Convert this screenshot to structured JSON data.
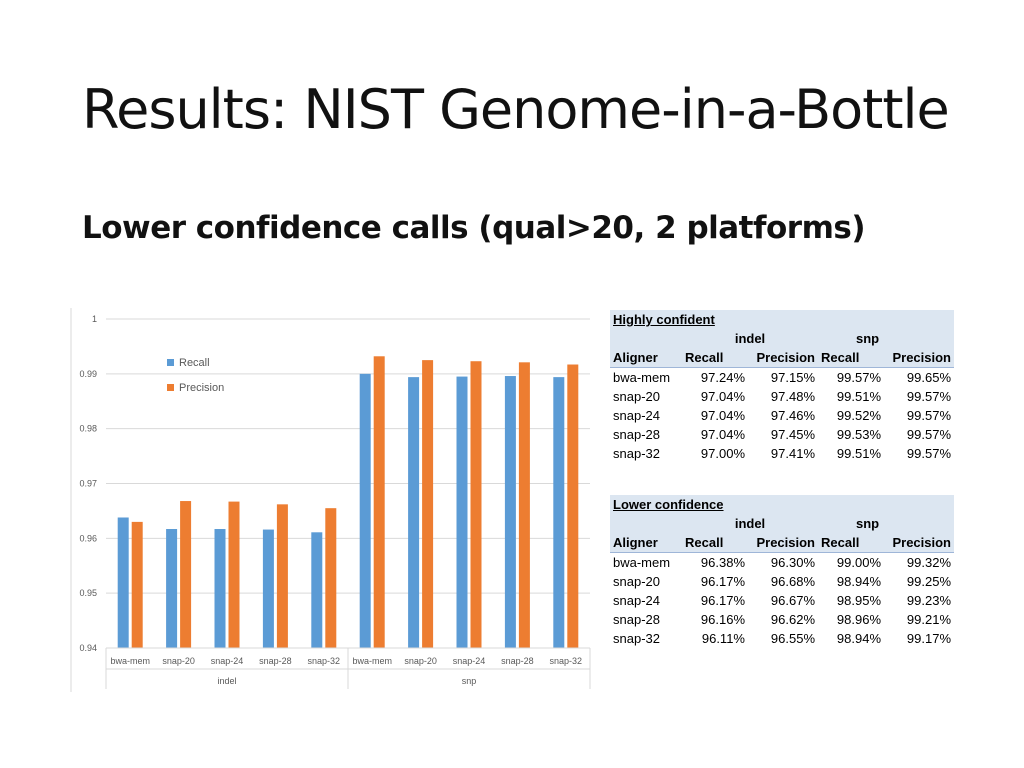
{
  "slide": {
    "title": "Results: NIST Genome-in-a-Bottle",
    "subtitle": "Lower confidence calls (qual>20, 2 platforms)"
  },
  "chart_data": {
    "type": "bar",
    "title": "",
    "xlabel": "",
    "ylabel": "",
    "groups": [
      {
        "label": "indel",
        "categories": [
          "bwa-mem",
          "snap-20",
          "snap-24",
          "snap-28",
          "snap-32"
        ]
      },
      {
        "label": "snp",
        "categories": [
          "bwa-mem",
          "snap-20",
          "snap-24",
          "snap-28",
          "snap-32"
        ]
      }
    ],
    "categories": [
      "bwa-mem",
      "snap-20",
      "snap-24",
      "snap-28",
      "snap-32",
      "bwa-mem",
      "snap-20",
      "snap-24",
      "snap-28",
      "snap-32"
    ],
    "series": [
      {
        "name": "Recall",
        "color": "#5b9bd5",
        "values": [
          0.9638,
          0.9617,
          0.9617,
          0.9616,
          0.9611,
          0.99,
          0.9894,
          0.9895,
          0.9896,
          0.9894
        ]
      },
      {
        "name": "Precision",
        "color": "#ed7d31",
        "values": [
          0.963,
          0.9668,
          0.9667,
          0.9662,
          0.9655,
          0.9932,
          0.9925,
          0.9923,
          0.9921,
          0.9917
        ]
      }
    ],
    "ylim": [
      0.94,
      1.0
    ],
    "yticks": [
      "1",
      "0.99",
      "0.98",
      "0.97",
      "0.96",
      "0.95",
      "0.94"
    ],
    "ytick_values": [
      1.0,
      0.99,
      0.98,
      0.97,
      0.96,
      0.95,
      0.94
    ],
    "grid": true,
    "legend_position": "top-left"
  },
  "tables": [
    {
      "title": "Highly confident",
      "group_labels": [
        "indel",
        "snp"
      ],
      "headers": [
        "Aligner",
        "Recall",
        "Precision",
        "Recall",
        "Precision"
      ],
      "rows": [
        [
          "bwa-mem",
          "97.24%",
          "97.15%",
          "99.57%",
          "99.65%"
        ],
        [
          "snap-20",
          "97.04%",
          "97.48%",
          "99.51%",
          "99.57%"
        ],
        [
          "snap-24",
          "97.04%",
          "97.46%",
          "99.52%",
          "99.57%"
        ],
        [
          "snap-28",
          "97.04%",
          "97.45%",
          "99.53%",
          "99.57%"
        ],
        [
          "snap-32",
          "97.00%",
          "97.41%",
          "99.51%",
          "99.57%"
        ]
      ]
    },
    {
      "title": "Lower confidence",
      "group_labels": [
        "indel",
        "snp"
      ],
      "headers": [
        "Aligner",
        "Recall",
        "Precision",
        "Recall",
        "Precision"
      ],
      "rows": [
        [
          "bwa-mem",
          "96.38%",
          "96.30%",
          "99.00%",
          "99.32%"
        ],
        [
          "snap-20",
          "96.17%",
          "96.68%",
          "98.94%",
          "99.25%"
        ],
        [
          "snap-24",
          "96.17%",
          "96.67%",
          "98.95%",
          "99.23%"
        ],
        [
          "snap-28",
          "96.16%",
          "96.62%",
          "98.96%",
          "99.21%"
        ],
        [
          "snap-32",
          "96.11%",
          "96.55%",
          "98.94%",
          "99.17%"
        ]
      ]
    }
  ]
}
